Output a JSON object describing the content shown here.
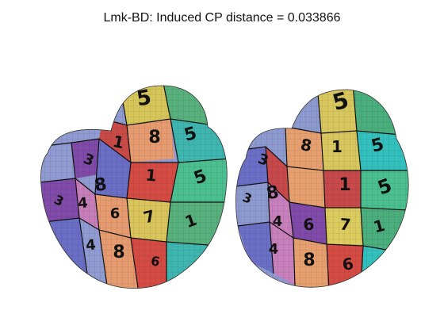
{
  "title": "Lmk-BD: Induced CP distance = 0.033866",
  "surfaces": [
    {
      "view": "left",
      "patch_colors": [
        "#d6c65a",
        "#58b07d",
        "#3fb5b0",
        "#c94b47",
        "#e59a6f",
        "#6a6ec4",
        "#c77fb9",
        "#7f4aa8",
        "#8f9bd1",
        "#d44b44",
        "#d9c55b",
        "#4bbf8f"
      ],
      "digits": [
        "5",
        "1",
        "8",
        "5",
        "3",
        "8",
        "1",
        "5",
        "3",
        "4",
        "6",
        "7",
        "1",
        "4",
        "8",
        "6"
      ]
    },
    {
      "view": "right",
      "patch_colors": [
        "#d8c75f",
        "#4bae7d",
        "#34c0bd",
        "#c7494b",
        "#e6a06f",
        "#6b6fc6",
        "#c880bc",
        "#8d9ad0",
        "#d44b44",
        "#dccb5e",
        "#4bbf8f",
        "#7f4aa8"
      ],
      "digits": [
        "5",
        "1",
        "8",
        "5",
        "3",
        "8",
        "1",
        "5",
        "3",
        "4",
        "6",
        "7",
        "1",
        "4",
        "8",
        "6"
      ]
    }
  ]
}
